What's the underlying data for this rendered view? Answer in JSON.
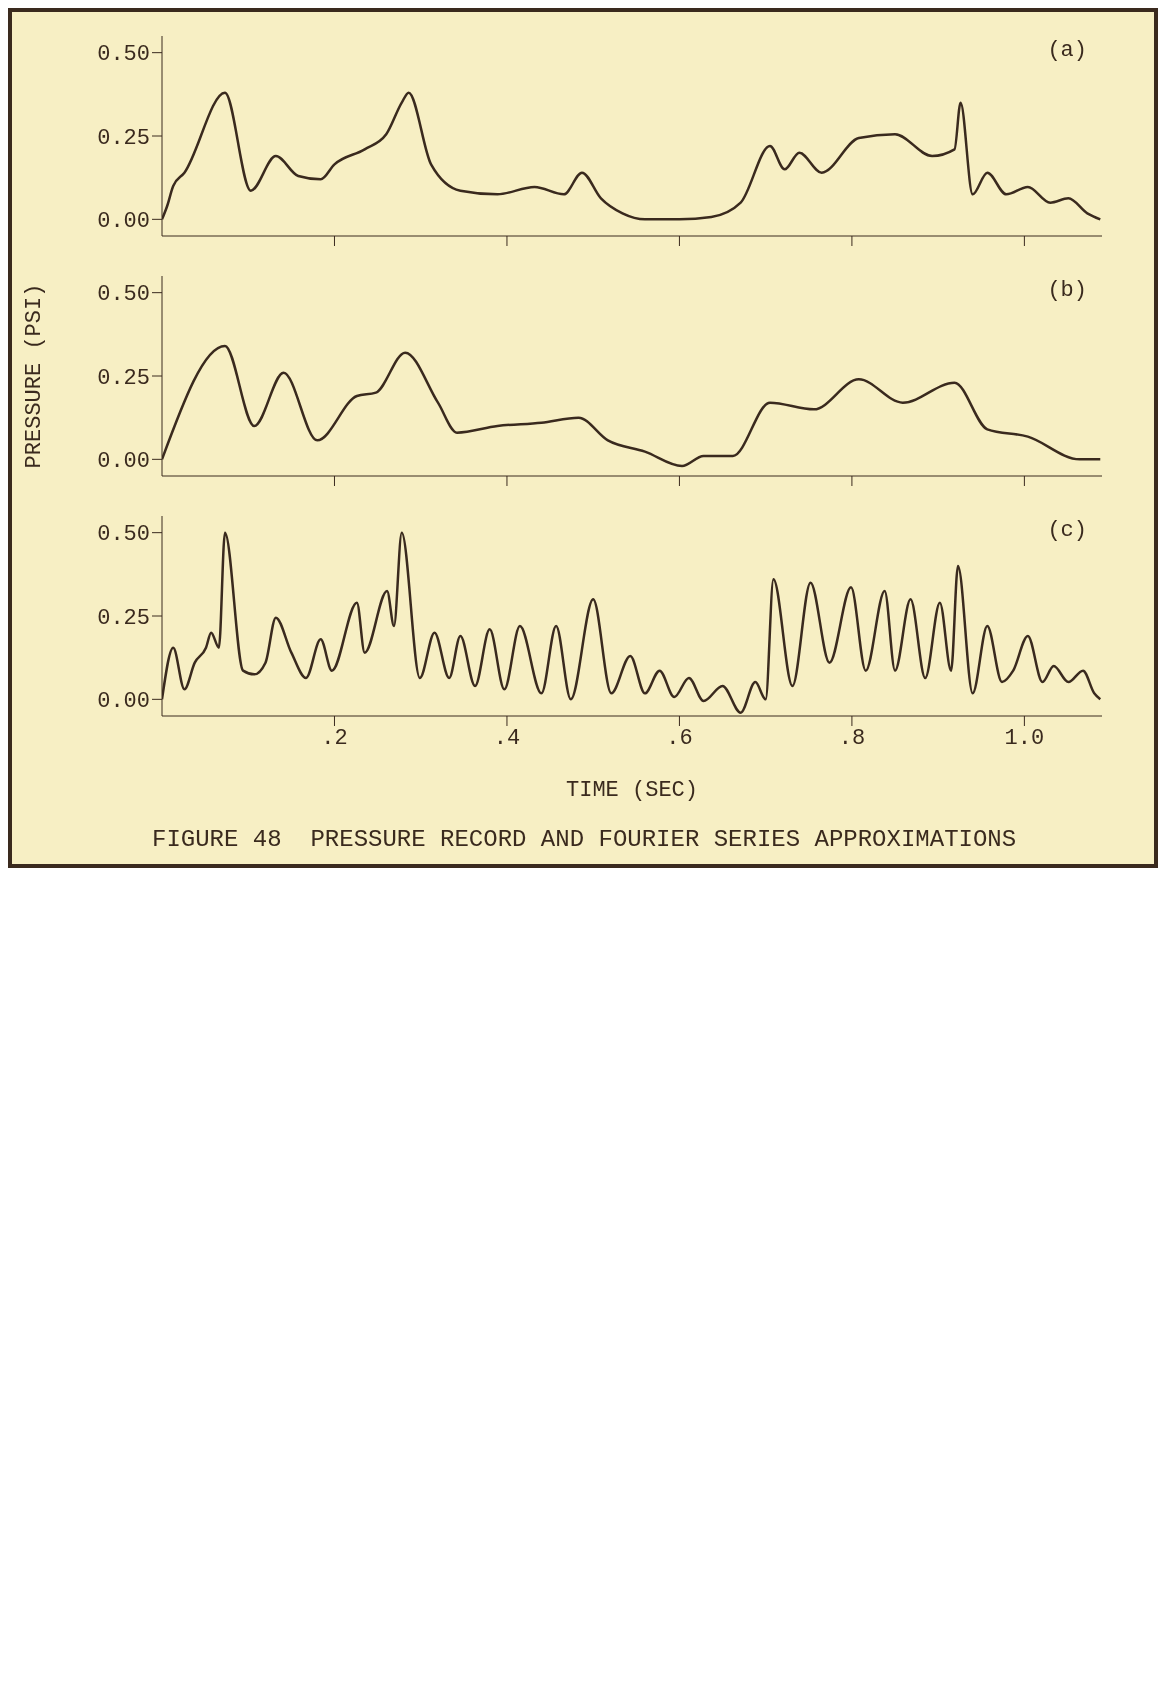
{
  "chart_data": [
    {
      "type": "line",
      "color": "#3a2a1e",
      "annotations": [
        "(a)"
      ],
      "tick_labels": "y",
      "xlim": [
        0,
        1.09
      ],
      "xticks": [
        {
          "value": 0.2,
          "label": null
        },
        {
          "value": 0.4,
          "label": null
        },
        {
          "value": 0.6,
          "label": null
        },
        {
          "value": 0.8,
          "label": null
        },
        {
          "value": 1.0,
          "label": null
        }
      ],
      "ylim": [
        -0.05,
        0.55
      ],
      "yticks": [
        {
          "value": 0,
          "label": "0.00"
        },
        {
          "value": 0.25,
          "label": "0.25"
        },
        {
          "value": 0.5,
          "label": "0.50"
        }
      ],
      "x": [
        0,
        0.006,
        0.013,
        0.026,
        0.073,
        0.103,
        0.132,
        0.158,
        0.184,
        0.2,
        0.235,
        0.26,
        0.278,
        0.286,
        0.312,
        0.346,
        0.389,
        0.432,
        0.466,
        0.487,
        0.509,
        0.534,
        0.56,
        0.6,
        0.637,
        0.671,
        0.705,
        0.722,
        0.739,
        0.765,
        0.808,
        0.85,
        0.893,
        0.919,
        0.926,
        0.94,
        0.957,
        0.979,
        1.004,
        1.03,
        1.051,
        1.073,
        1.088
      ],
      "values": [
        0,
        0.04,
        0.1,
        0.14,
        0.38,
        0.086,
        0.19,
        0.13,
        0.12,
        0.165,
        0.21,
        0.255,
        0.35,
        0.38,
        0.165,
        0.086,
        0.075,
        0.097,
        0.075,
        0.14,
        0.063,
        0.018,
        0,
        0,
        0.007,
        0.05,
        0.22,
        0.15,
        0.2,
        0.14,
        0.244,
        0.255,
        0.19,
        0.21,
        0.35,
        0.075,
        0.14,
        0.075,
        0.097,
        0.05,
        0.063,
        0.018,
        0
      ]
    },
    {
      "type": "line",
      "color": "#3a2a1e",
      "annotations": [
        "(b)"
      ],
      "ylabel": "PRESSURE (PSI)",
      "tick_labels": "y",
      "xlim": [
        0,
        1.09
      ],
      "xticks": [
        {
          "value": 0.2,
          "label": null
        },
        {
          "value": 0.4,
          "label": null
        },
        {
          "value": 0.6,
          "label": null
        },
        {
          "value": 0.8,
          "label": null
        },
        {
          "value": 1.0,
          "label": null
        }
      ],
      "ylim": [
        -0.05,
        0.55
      ],
      "yticks": [
        {
          "value": 0,
          "label": "0.00"
        },
        {
          "value": 0.25,
          "label": "0.25"
        },
        {
          "value": 0.5,
          "label": "0.50"
        }
      ],
      "x": [
        0,
        0.073,
        0.107,
        0.141,
        0.18,
        0.226,
        0.248,
        0.282,
        0.32,
        0.342,
        0.389,
        0.44,
        0.483,
        0.517,
        0.56,
        0.603,
        0.628,
        0.662,
        0.705,
        0.756,
        0.808,
        0.859,
        0.919,
        0.957,
        1.004,
        1.064,
        1.088
      ],
      "values": [
        0,
        0.34,
        0.1,
        0.26,
        0.057,
        0.19,
        0.2,
        0.32,
        0.17,
        0.08,
        0.1,
        0.11,
        0.125,
        0.057,
        0.023,
        -0.02,
        0.01,
        0.01,
        0.17,
        0.15,
        0.24,
        0.17,
        0.23,
        0.09,
        0.068,
        0,
        0
      ]
    },
    {
      "type": "line",
      "color": "#3a2a1e",
      "annotations": [
        "(c)",
        "FIGURE 48  PRESSURE RECORD AND FOURIER SERIES APPROXIMATIONS"
      ],
      "xlabel": "TIME (SEC)",
      "xlim": [
        0,
        1.09
      ],
      "xticks": [
        {
          "value": 0.2,
          "label": ".2"
        },
        {
          "value": 0.4,
          "label": ".4"
        },
        {
          "value": 0.6,
          "label": ".6"
        },
        {
          "value": 0.8,
          "label": ".8"
        },
        {
          "value": 1.0,
          "label": "1.0"
        }
      ],
      "ylim": [
        -0.05,
        0.55
      ],
      "yticks": [
        {
          "value": 0,
          "label": "0.00"
        },
        {
          "value": 0.25,
          "label": "0.25"
        },
        {
          "value": 0.5,
          "label": "0.50"
        }
      ],
      "x": [
        0,
        0.013,
        0.026,
        0.038,
        0.051,
        0.057,
        0.066,
        0.073,
        0.094,
        0.107,
        0.12,
        0.132,
        0.15,
        0.167,
        0.184,
        0.197,
        0.226,
        0.235,
        0.261,
        0.269,
        0.278,
        0.299,
        0.316,
        0.333,
        0.346,
        0.363,
        0.38,
        0.397,
        0.415,
        0.44,
        0.457,
        0.474,
        0.5,
        0.521,
        0.543,
        0.56,
        0.577,
        0.594,
        0.611,
        0.628,
        0.65,
        0.671,
        0.688,
        0.7,
        0.709,
        0.731,
        0.752,
        0.774,
        0.799,
        0.816,
        0.838,
        0.85,
        0.868,
        0.885,
        0.902,
        0.915,
        0.923,
        0.94,
        0.957,
        0.974,
        0.987,
        1.004,
        1.021,
        1.034,
        1.051,
        1.068,
        1.081,
        1.088
      ],
      "values": [
        0,
        0.155,
        0.03,
        0.11,
        0.155,
        0.2,
        0.155,
        0.5,
        0.086,
        0.075,
        0.11,
        0.245,
        0.14,
        0.064,
        0.18,
        0.086,
        0.29,
        0.14,
        0.325,
        0.22,
        0.5,
        0.064,
        0.2,
        0.064,
        0.19,
        0.04,
        0.21,
        0.03,
        0.22,
        0.018,
        0.22,
        0,
        0.3,
        0.018,
        0.13,
        0.018,
        0.086,
        0.007,
        0.064,
        -0.005,
        0.04,
        -0.04,
        0.052,
        0,
        0.36,
        0.04,
        0.35,
        0.11,
        0.336,
        0.086,
        0.325,
        0.086,
        0.3,
        0.064,
        0.29,
        0.086,
        0.4,
        0.018,
        0.22,
        0.052,
        0.086,
        0.19,
        0.052,
        0.1,
        0.052,
        0.086,
        0.018,
        0
      ]
    }
  ]
}
